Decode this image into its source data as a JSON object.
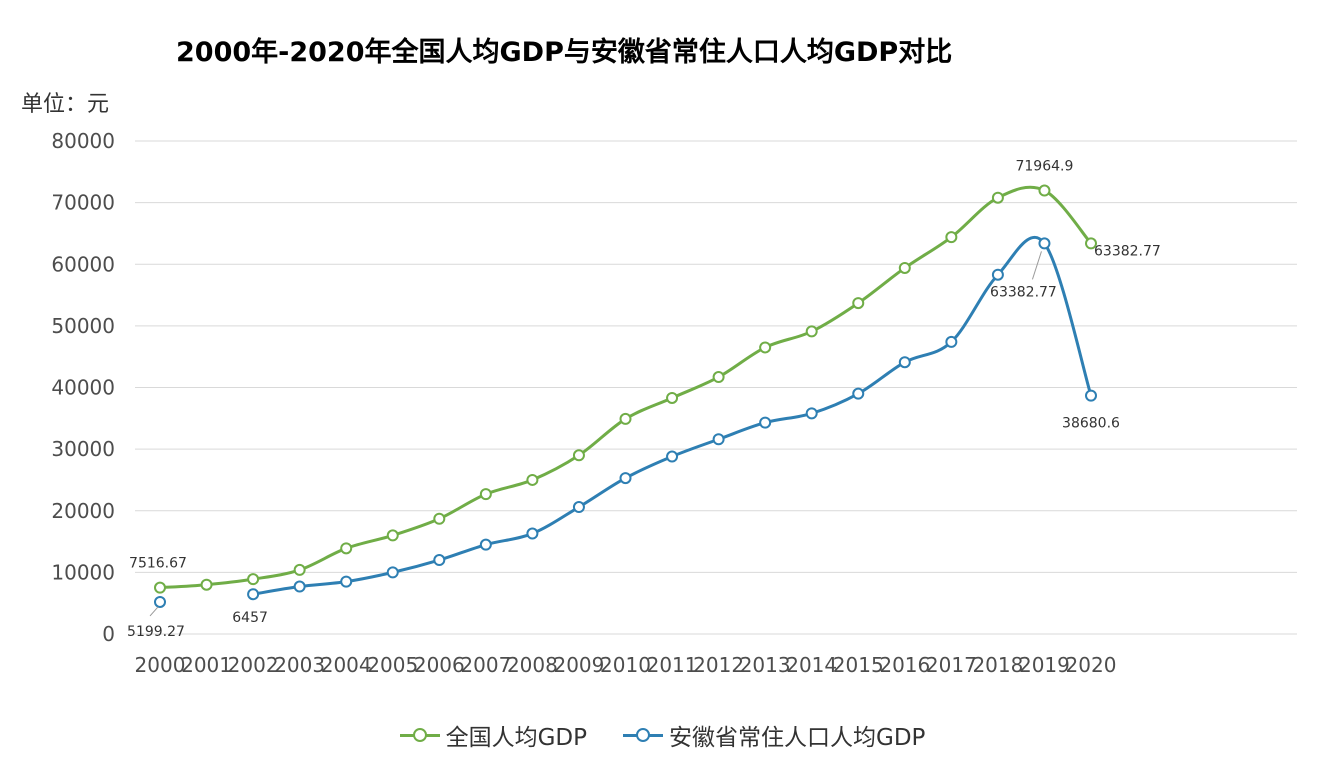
{
  "title": "2000年-2020年全国人均GDP与安徽省常住人口人均GDP对比",
  "unit_label": "单位：元",
  "chart_data": {
    "type": "line",
    "title": "2000年-2020年全国人均GDP与安徽省常住人口人均GDP对比",
    "xlabel": "",
    "ylabel": "单位：元",
    "ylim": [
      0,
      80000
    ],
    "yticks": [
      0,
      10000,
      20000,
      30000,
      40000,
      50000,
      60000,
      70000,
      80000
    ],
    "grid": true,
    "legend_position": "bottom",
    "categories": [
      "2000",
      "2001",
      "2002",
      "2003",
      "2004",
      "2005",
      "2006",
      "2007",
      "2008",
      "2009",
      "2010",
      "2011",
      "2012",
      "2013",
      "2014",
      "2015",
      "2016",
      "2017",
      "2018",
      "2019",
      "2020"
    ],
    "series": [
      {
        "name": "全国人均GDP",
        "color": "#70ad47",
        "values": [
          7516.67,
          8000,
          8900,
          10400,
          13900,
          16000,
          18700,
          22700,
          25000,
          29000,
          34900,
          38300,
          41700,
          46500,
          49100,
          53700,
          59400,
          64400,
          70800,
          71964.9,
          63382.77
        ],
        "labels": {
          "0": "7516.67",
          "19": "71964.9",
          "20": "63382.77"
        }
      },
      {
        "name": "安徽省常住人口人均GDP",
        "color": "#2e7fb3",
        "values": [
          5199.27,
          null,
          6457,
          7700,
          8500,
          10000,
          12000,
          14500,
          16300,
          20600,
          25300,
          28800,
          31600,
          34300,
          35800,
          39000,
          44100,
          47400,
          58300,
          63382.77,
          38680.6
        ],
        "labels": {
          "0": "5199.27",
          "2": "6457",
          "19": "63382.77",
          "20": "38680.6"
        }
      }
    ]
  }
}
